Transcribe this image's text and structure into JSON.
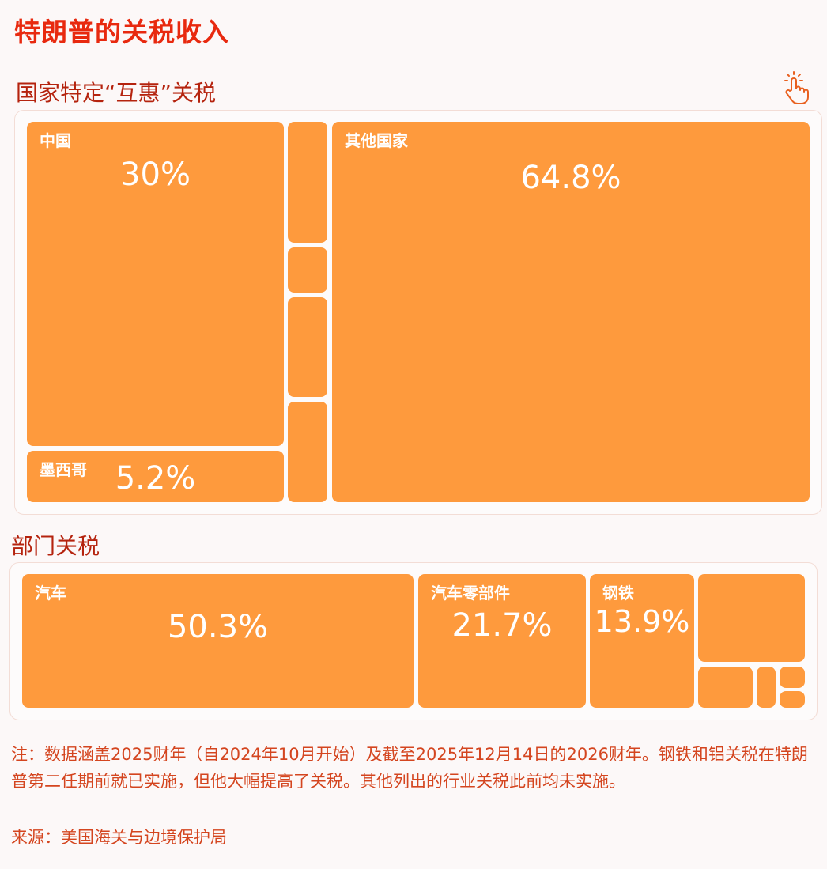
{
  "title": "特朗普的关税收入",
  "icon": "click-hand-icon",
  "accent_color": "#e8290f",
  "tile_color": "#fe9a3d",
  "chart_data": [
    {
      "type": "treemap",
      "title": "国家特定“互惠”关税",
      "items": [
        {
          "label": "中国",
          "value_text": "30%",
          "value": 30
        },
        {
          "label": "墨西哥",
          "value_text": "5.2%",
          "value": 5.2
        },
        {
          "label": "",
          "value_text": "",
          "value": null
        },
        {
          "label": "",
          "value_text": "",
          "value": null
        },
        {
          "label": "",
          "value_text": "",
          "value": null
        },
        {
          "label": "",
          "value_text": "",
          "value": null
        },
        {
          "label": "其他国家",
          "value_text": "64.8%",
          "value": 64.8
        }
      ]
    },
    {
      "type": "treemap",
      "title": "部门关税",
      "items": [
        {
          "label": "汽车",
          "value_text": "50.3%",
          "value": 50.3
        },
        {
          "label": "汽车零部件",
          "value_text": "21.7%",
          "value": 21.7
        },
        {
          "label": "钢铁",
          "value_text": "13.9%",
          "value": 13.9
        },
        {
          "label": "",
          "value_text": "",
          "value": null
        },
        {
          "label": "",
          "value_text": "",
          "value": null
        },
        {
          "label": "",
          "value_text": "",
          "value": null
        },
        {
          "label": "",
          "value_text": "",
          "value": null
        },
        {
          "label": "",
          "value_text": "",
          "value": null
        }
      ]
    }
  ],
  "footnote": "注：数据涵盖2025财年（自2024年10月开始）及截至2025年12月14日的2026财年。钢铁和铝关税在特朗普第二任期前就已实施，但他大幅提高了关税。其他列出的行业关税此前均未实施。",
  "source": "来源：美国海关与边境保护局"
}
